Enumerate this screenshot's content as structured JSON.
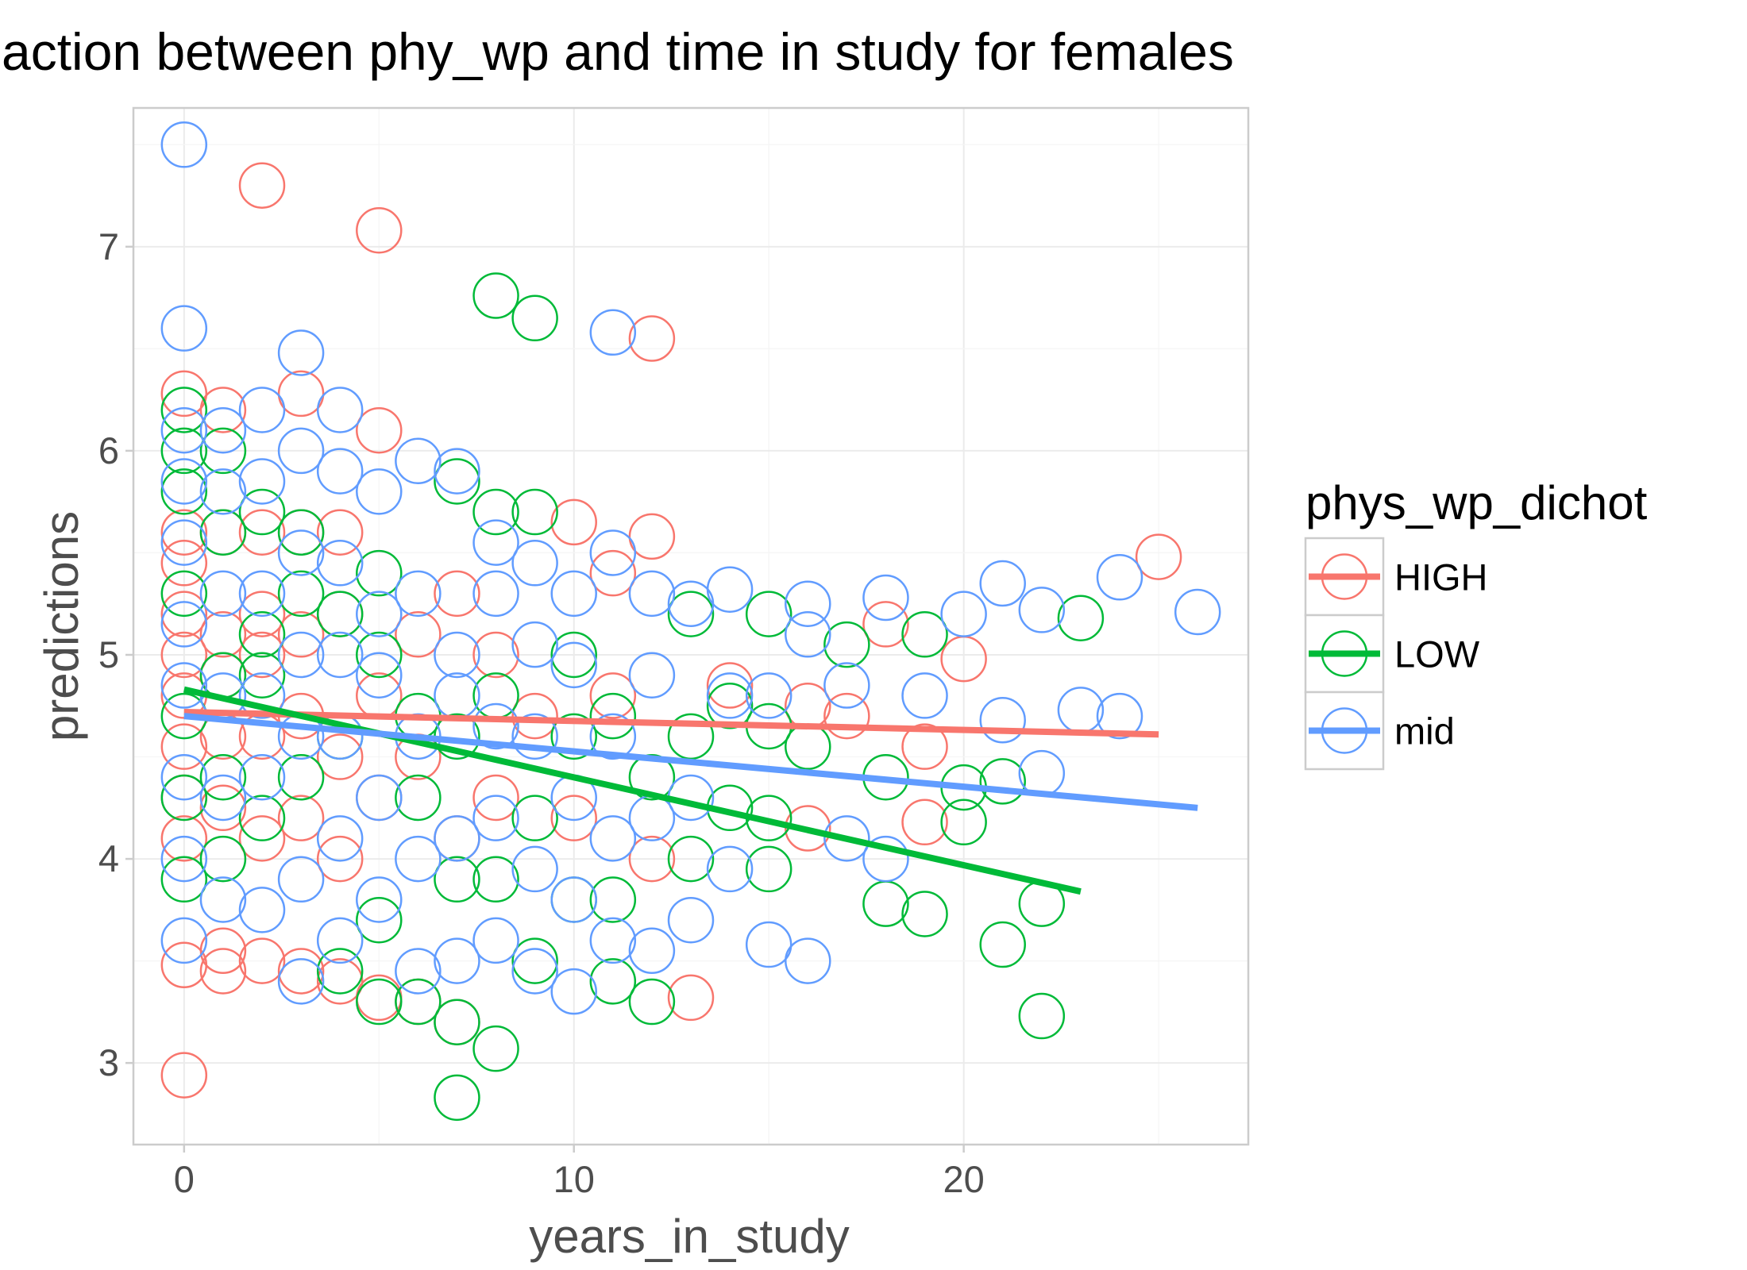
{
  "chart_data": {
    "type": "scatter",
    "title": "action between phy_wp and time in study for females",
    "xlabel": "years_in_study",
    "ylabel": "predictions",
    "xlim": [
      -1.3,
      27.3
    ],
    "ylim": [
      2.6,
      7.68
    ],
    "x_ticks": [
      0,
      10,
      20
    ],
    "x_tick_labels": [
      "0",
      "10",
      "20"
    ],
    "y_ticks": [
      3,
      4,
      5,
      6,
      7
    ],
    "y_tick_labels": [
      "3",
      "4",
      "5",
      "6",
      "7"
    ],
    "grid": true,
    "legend": {
      "title": "phys_wp_dichot",
      "position": "right"
    },
    "series": [
      {
        "name": "HIGH",
        "color": "#F8766D",
        "points": [
          [
            0,
            2.94
          ],
          [
            0,
            3.48
          ],
          [
            0,
            4.1
          ],
          [
            0,
            4.3
          ],
          [
            0,
            4.55
          ],
          [
            0,
            4.8
          ],
          [
            0,
            5.0
          ],
          [
            0,
            5.2
          ],
          [
            0,
            5.45
          ],
          [
            0,
            5.6
          ],
          [
            0,
            6.28
          ],
          [
            1,
            3.45
          ],
          [
            1,
            3.55
          ],
          [
            1,
            4.25
          ],
          [
            1,
            4.6
          ],
          [
            1,
            4.9
          ],
          [
            1,
            5.1
          ],
          [
            1,
            5.6
          ],
          [
            1,
            6.2
          ],
          [
            2,
            7.3
          ],
          [
            2,
            3.5
          ],
          [
            2,
            4.1
          ],
          [
            2,
            4.6
          ],
          [
            2,
            5.0
          ],
          [
            2,
            5.2
          ],
          [
            2,
            5.6
          ],
          [
            3,
            6.28
          ],
          [
            3,
            3.45
          ],
          [
            3,
            4.2
          ],
          [
            3,
            4.7
          ],
          [
            3,
            5.1
          ],
          [
            3,
            5.6
          ],
          [
            4,
            3.4
          ],
          [
            4,
            4.0
          ],
          [
            4,
            4.5
          ],
          [
            4,
            5.2
          ],
          [
            4,
            5.6
          ],
          [
            5,
            7.08
          ],
          [
            5,
            3.32
          ],
          [
            5,
            4.3
          ],
          [
            5,
            4.8
          ],
          [
            5,
            6.1
          ],
          [
            6,
            3.3
          ],
          [
            6,
            4.5
          ],
          [
            6,
            5.1
          ],
          [
            7,
            3.2
          ],
          [
            7,
            4.1
          ],
          [
            7,
            5.3
          ],
          [
            8,
            4.3
          ],
          [
            8,
            5.0
          ],
          [
            9,
            4.7
          ],
          [
            10,
            5.65
          ],
          [
            10,
            4.2
          ],
          [
            11,
            5.4
          ],
          [
            11,
            4.8
          ],
          [
            12,
            6.55
          ],
          [
            12,
            5.58
          ],
          [
            12,
            4.0
          ],
          [
            13,
            3.32
          ],
          [
            14,
            4.85
          ],
          [
            16,
            4.75
          ],
          [
            16,
            4.15
          ],
          [
            17,
            4.7
          ],
          [
            18,
            5.15
          ],
          [
            19,
            4.55
          ],
          [
            19,
            4.18
          ],
          [
            20,
            4.98
          ],
          [
            25,
            5.48
          ]
        ],
        "fit": [
          [
            0,
            4.72
          ],
          [
            25,
            4.61
          ]
        ]
      },
      {
        "name": "LOW",
        "color": "#00BA38",
        "points": [
          [
            0,
            3.9
          ],
          [
            0,
            4.3
          ],
          [
            0,
            4.7
          ],
          [
            0,
            5.3
          ],
          [
            0,
            5.8
          ],
          [
            0,
            6.0
          ],
          [
            0,
            6.2
          ],
          [
            1,
            4.0
          ],
          [
            1,
            4.4
          ],
          [
            1,
            4.9
          ],
          [
            1,
            5.6
          ],
          [
            1,
            6.0
          ],
          [
            2,
            4.2
          ],
          [
            2,
            4.9
          ],
          [
            2,
            5.1
          ],
          [
            2,
            5.7
          ],
          [
            3,
            4.4
          ],
          [
            3,
            5.3
          ],
          [
            3,
            5.6
          ],
          [
            4,
            3.45
          ],
          [
            4,
            4.6
          ],
          [
            4,
            5.2
          ],
          [
            5,
            3.3
          ],
          [
            5,
            3.7
          ],
          [
            5,
            5.0
          ],
          [
            5,
            5.4
          ],
          [
            6,
            3.3
          ],
          [
            6,
            4.3
          ],
          [
            6,
            4.7
          ],
          [
            7,
            2.83
          ],
          [
            7,
            3.2
          ],
          [
            7,
            3.9
          ],
          [
            7,
            4.6
          ],
          [
            7,
            5.85
          ],
          [
            8,
            6.76
          ],
          [
            8,
            3.07
          ],
          [
            8,
            3.9
          ],
          [
            8,
            4.8
          ],
          [
            8,
            5.7
          ],
          [
            9,
            6.65
          ],
          [
            9,
            3.5
          ],
          [
            9,
            4.2
          ],
          [
            9,
            5.7
          ],
          [
            10,
            3.8
          ],
          [
            10,
            4.6
          ],
          [
            10,
            5.0
          ],
          [
            11,
            3.4
          ],
          [
            11,
            3.8
          ],
          [
            11,
            4.7
          ],
          [
            12,
            3.3
          ],
          [
            12,
            4.4
          ],
          [
            13,
            4.0
          ],
          [
            13,
            4.6
          ],
          [
            13,
            5.2
          ],
          [
            14,
            4.25
          ],
          [
            14,
            4.75
          ],
          [
            15,
            3.95
          ],
          [
            15,
            4.2
          ],
          [
            15,
            4.65
          ],
          [
            15,
            5.2
          ],
          [
            16,
            4.55
          ],
          [
            17,
            5.05
          ],
          [
            18,
            3.78
          ],
          [
            18,
            4.4
          ],
          [
            19,
            3.73
          ],
          [
            19,
            5.1
          ],
          [
            20,
            4.18
          ],
          [
            20,
            4.35
          ],
          [
            21,
            3.58
          ],
          [
            21,
            4.38
          ],
          [
            22,
            3.23
          ],
          [
            22,
            3.78
          ],
          [
            23,
            5.18
          ]
        ],
        "fit": [
          [
            0,
            4.83
          ],
          [
            23,
            3.84
          ]
        ]
      },
      {
        "name": "mid",
        "color": "#619CFF",
        "points": [
          [
            0,
            7.5
          ],
          [
            0,
            6.6
          ],
          [
            0,
            3.6
          ],
          [
            0,
            4.0
          ],
          [
            0,
            4.4
          ],
          [
            0,
            4.85
          ],
          [
            0,
            5.15
          ],
          [
            0,
            5.55
          ],
          [
            0,
            5.85
          ],
          [
            0,
            6.1
          ],
          [
            1,
            3.8
          ],
          [
            1,
            4.3
          ],
          [
            1,
            4.8
          ],
          [
            1,
            5.3
          ],
          [
            1,
            5.8
          ],
          [
            1,
            6.1
          ],
          [
            2,
            3.75
          ],
          [
            2,
            4.4
          ],
          [
            2,
            4.8
          ],
          [
            2,
            5.3
          ],
          [
            2,
            5.85
          ],
          [
            2,
            6.2
          ],
          [
            3,
            6.48
          ],
          [
            3,
            3.4
          ],
          [
            3,
            3.9
          ],
          [
            3,
            4.6
          ],
          [
            3,
            5.0
          ],
          [
            3,
            5.5
          ],
          [
            3,
            6.0
          ],
          [
            4,
            3.6
          ],
          [
            4,
            4.1
          ],
          [
            4,
            4.6
          ],
          [
            4,
            5.0
          ],
          [
            4,
            5.45
          ],
          [
            4,
            5.9
          ],
          [
            4,
            6.2
          ],
          [
            5,
            3.8
          ],
          [
            5,
            4.3
          ],
          [
            5,
            4.9
          ],
          [
            5,
            5.2
          ],
          [
            5,
            5.8
          ],
          [
            6,
            3.45
          ],
          [
            6,
            4.0
          ],
          [
            6,
            4.6
          ],
          [
            6,
            5.3
          ],
          [
            6,
            5.95
          ],
          [
            7,
            3.5
          ],
          [
            7,
            4.1
          ],
          [
            7,
            4.8
          ],
          [
            7,
            5.0
          ],
          [
            7,
            5.9
          ],
          [
            8,
            3.6
          ],
          [
            8,
            4.2
          ],
          [
            8,
            4.65
          ],
          [
            8,
            5.3
          ],
          [
            8,
            5.55
          ],
          [
            9,
            3.45
          ],
          [
            9,
            3.95
          ],
          [
            9,
            4.6
          ],
          [
            9,
            5.05
          ],
          [
            9,
            5.45
          ],
          [
            10,
            3.35
          ],
          [
            10,
            3.8
          ],
          [
            10,
            4.3
          ],
          [
            10,
            4.95
          ],
          [
            10,
            5.3
          ],
          [
            11,
            6.58
          ],
          [
            11,
            3.6
          ],
          [
            11,
            4.1
          ],
          [
            11,
            4.6
          ],
          [
            11,
            5.5
          ],
          [
            12,
            3.55
          ],
          [
            12,
            4.2
          ],
          [
            12,
            4.9
          ],
          [
            12,
            5.3
          ],
          [
            13,
            3.7
          ],
          [
            13,
            4.3
          ],
          [
            13,
            5.25
          ],
          [
            14,
            3.95
          ],
          [
            14,
            4.8
          ],
          [
            14,
            5.32
          ],
          [
            15,
            3.58
          ],
          [
            15,
            4.8
          ],
          [
            16,
            3.5
          ],
          [
            16,
            5.1
          ],
          [
            16,
            5.25
          ],
          [
            17,
            4.1
          ],
          [
            17,
            4.85
          ],
          [
            18,
            4.0
          ],
          [
            18,
            5.28
          ],
          [
            19,
            4.8
          ],
          [
            20,
            5.2
          ],
          [
            21,
            4.68
          ],
          [
            21,
            5.35
          ],
          [
            22,
            4.42
          ],
          [
            22,
            5.22
          ],
          [
            23,
            4.73
          ],
          [
            24,
            4.7
          ],
          [
            24,
            5.38
          ],
          [
            26,
            5.21
          ]
        ],
        "fit": [
          [
            0,
            4.7
          ],
          [
            26,
            4.25
          ]
        ]
      }
    ]
  }
}
